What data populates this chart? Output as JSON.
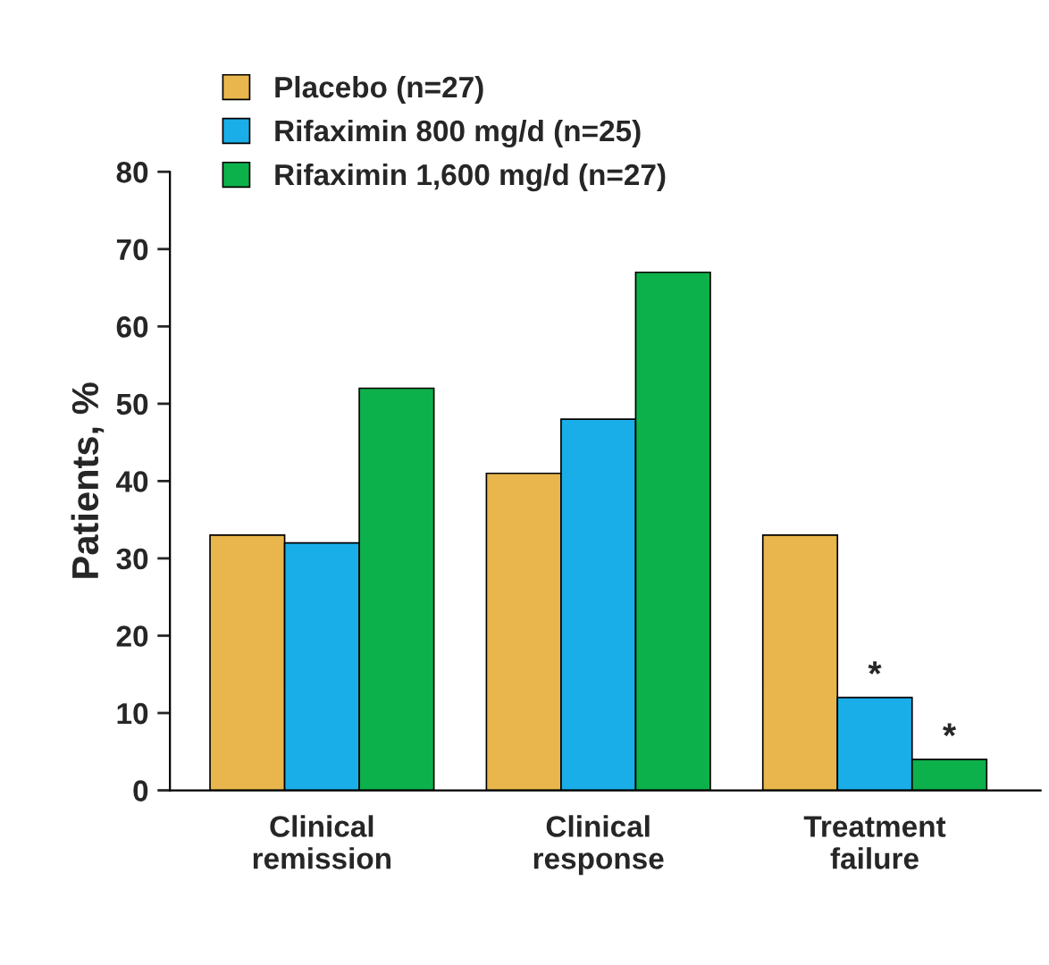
{
  "chart_data": {
    "type": "bar",
    "ylabel": "Patients, %",
    "categories": [
      "Clinical\nremission",
      "Clinical\nresponse",
      "Treatment\nfailure"
    ],
    "series": [
      {
        "name": "Placebo (n=27)",
        "color": "#e8b64c",
        "values": [
          33,
          41,
          33
        ]
      },
      {
        "name": "Rifaximin 800 mg/d (n=25)",
        "color": "#1aaee8",
        "values": [
          32,
          48,
          12
        ]
      },
      {
        "name": "Rifaximin 1,600 mg/d (n=27)",
        "color": "#0db14b",
        "values": [
          52,
          67,
          4
        ]
      }
    ],
    "ylim": [
      0,
      80
    ],
    "yticks": [
      0,
      10,
      20,
      30,
      40,
      50,
      60,
      70,
      80
    ],
    "annotations": [
      "*",
      "*"
    ],
    "legend": "top left",
    "grid": false
  }
}
